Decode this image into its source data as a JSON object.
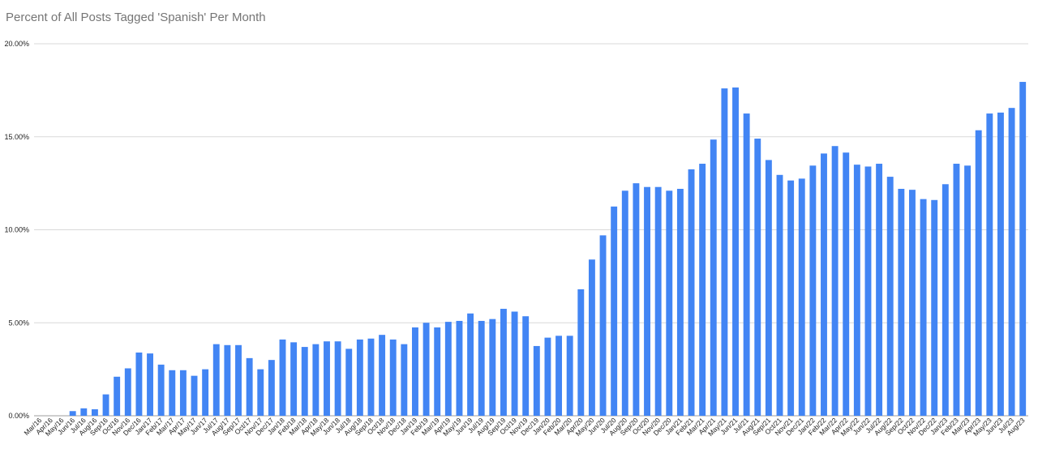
{
  "chart_data": {
    "type": "bar",
    "title": "Percent of All Posts Tagged 'Spanish' Per Month",
    "xlabel": "",
    "ylabel": "",
    "ylim": [
      0,
      20
    ],
    "y_ticks": [
      "0.00%",
      "5.00%",
      "10.00%",
      "15.00%",
      "20.00%"
    ],
    "grid": true,
    "legend": "none",
    "bar_color": "#4285f4",
    "categories": [
      "Mar/16",
      "Apr/16",
      "May/16",
      "Jun/16",
      "Jul/16",
      "Aug/16",
      "Sep/16",
      "Oct/16",
      "Nov/16",
      "Dec/16",
      "Jan/17",
      "Feb/17",
      "Mar/17",
      "Apr/17",
      "May/17",
      "Jun/17",
      "Jul/17",
      "Aug/17",
      "Sep/17",
      "Oct/17",
      "Nov/17",
      "Dec/17",
      "Jan/18",
      "Feb/18",
      "Mar/18",
      "Apr/18",
      "May/18",
      "Jun/18",
      "Jul/18",
      "Aug/18",
      "Sep/18",
      "Oct/18",
      "Nov/18",
      "Dec/18",
      "Jan/19",
      "Feb/19",
      "Mar/19",
      "Apr/19",
      "May/19",
      "Jun/19",
      "Jul/19",
      "Aug/19",
      "Sep/19",
      "Oct/19",
      "Nov/19",
      "Dec/19",
      "Jan/20",
      "Feb/20",
      "Mar/20",
      "Apr/20",
      "May/20",
      "Jun/20",
      "Jul/20",
      "Aug/20",
      "Sep/20",
      "Oct/20",
      "Nov/20",
      "Dec/20",
      "Jan/21",
      "Feb/21",
      "Mar/21",
      "Apr/21",
      "May/21",
      "Jun/21",
      "Jul/21",
      "Aug/21",
      "Sep/21",
      "Oct/21",
      "Nov/21",
      "Dec/21",
      "Jan/22",
      "Feb/22",
      "Mar/22",
      "Apr/22",
      "May/22",
      "Jun/22",
      "Jul/22",
      "Aug/22",
      "Sep/22",
      "Oct/22",
      "Nov/22",
      "Dec/22",
      "Jan/23",
      "Feb/23",
      "Mar/23",
      "Apr/23",
      "May/23",
      "Jun/23",
      "Jul/23",
      "Aug/23"
    ],
    "values": [
      0,
      0,
      0,
      0.25,
      0.4,
      0.35,
      1.15,
      2.1,
      2.55,
      3.4,
      3.35,
      2.75,
      2.45,
      2.45,
      2.15,
      2.5,
      3.85,
      3.8,
      3.8,
      3.1,
      2.5,
      3.0,
      4.1,
      3.95,
      3.7,
      3.85,
      4.0,
      4.0,
      3.6,
      4.1,
      4.15,
      4.35,
      4.1,
      3.85,
      4.75,
      5.0,
      4.75,
      5.05,
      5.1,
      5.5,
      5.1,
      5.2,
      5.75,
      5.6,
      5.35,
      3.75,
      4.2,
      4.3,
      4.3,
      6.8,
      8.4,
      9.7,
      11.25,
      12.1,
      12.5,
      12.3,
      12.3,
      12.1,
      12.2,
      13.25,
      13.55,
      14.85,
      17.6,
      17.65,
      16.25,
      14.9,
      13.75,
      12.95,
      12.65,
      12.75,
      13.45,
      14.1,
      14.5,
      14.15,
      13.5,
      13.4,
      13.55,
      12.85,
      12.2,
      12.15,
      11.65,
      11.6,
      12.45,
      13.55,
      13.45,
      15.35,
      16.25,
      16.3,
      16.55,
      17.95
    ]
  }
}
